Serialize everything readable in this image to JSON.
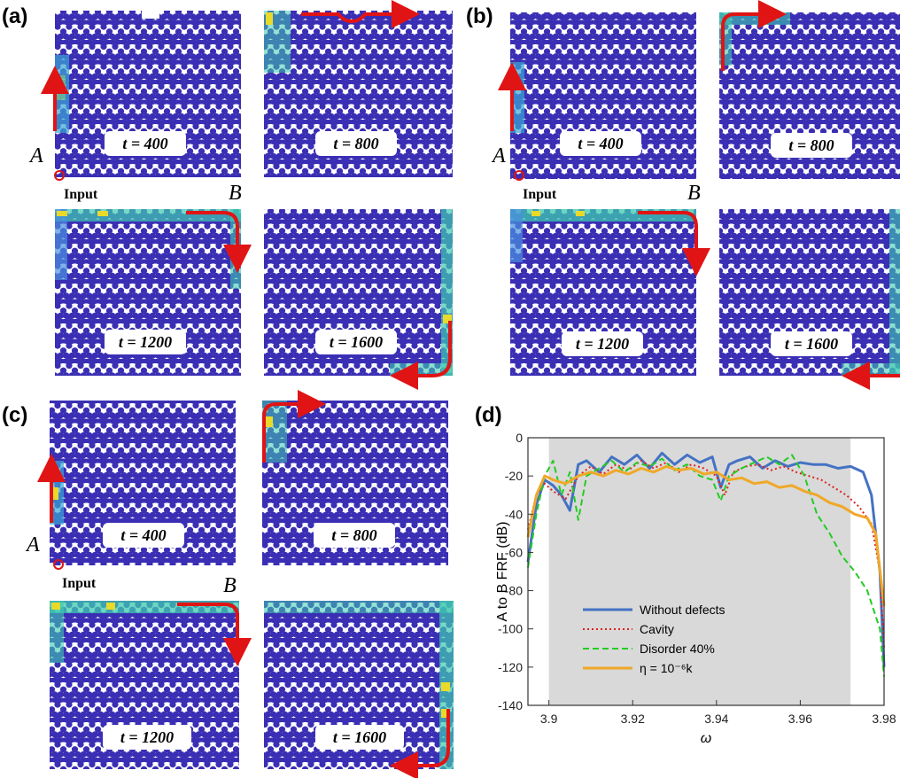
{
  "labels": {
    "a": "(a)",
    "b": "(b)",
    "c": "(c)",
    "d": "(d)"
  },
  "points": {
    "A": "A",
    "B": "B"
  },
  "input_label": "Input",
  "times": [
    "t = 400",
    "t = 800",
    "t = 1200",
    "t = 1600"
  ],
  "colors": {
    "lattice": "#3a2fb4",
    "edge_mid": "#4a90e0",
    "edge_hi": "#3ec9b0",
    "edge_peak": "#e9d92a",
    "arrow": "#e01414",
    "band": "#d9d9d9"
  },
  "chart_data": {
    "type": "line",
    "xlabel": "ω",
    "ylabel": "A to B FRF (dB)",
    "xlim": [
      3.895,
      3.98
    ],
    "ylim": [
      -140,
      0
    ],
    "xticks": [
      "3.9",
      "3.92",
      "3.94",
      "3.96",
      "3.98"
    ],
    "yticks": [
      "0",
      "-20",
      "-40",
      "-60",
      "-80",
      "-100",
      "-120",
      "-140"
    ],
    "band": [
      3.9,
      3.972
    ],
    "legend_position": "lower-left",
    "series": [
      {
        "name": "Without defects",
        "color": "#4472c4",
        "style": "solid",
        "x": [
          3.895,
          3.897,
          3.899,
          3.901,
          3.903,
          3.905,
          3.907,
          3.909,
          3.912,
          3.915,
          3.918,
          3.921,
          3.924,
          3.927,
          3.93,
          3.933,
          3.936,
          3.939,
          3.941,
          3.943,
          3.945,
          3.948,
          3.951,
          3.954,
          3.957,
          3.96,
          3.963,
          3.966,
          3.969,
          3.972,
          3.975,
          3.977,
          3.979,
          3.98
        ],
        "y": [
          -65,
          -35,
          -22,
          -25,
          -30,
          -38,
          -14,
          -12,
          -18,
          -10,
          -14,
          -9,
          -16,
          -8,
          -14,
          -9,
          -13,
          -10,
          -26,
          -14,
          -12,
          -10,
          -16,
          -12,
          -15,
          -13,
          -14,
          -14,
          -16,
          -15,
          -18,
          -30,
          -70,
          -120
        ]
      },
      {
        "name": "Cavity",
        "color": "#e02020",
        "style": "dotted",
        "x": [
          3.895,
          3.897,
          3.899,
          3.901,
          3.904,
          3.907,
          3.91,
          3.913,
          3.916,
          3.919,
          3.922,
          3.925,
          3.928,
          3.931,
          3.934,
          3.937,
          3.94,
          3.942,
          3.944,
          3.947,
          3.95,
          3.953,
          3.956,
          3.959,
          3.962,
          3.965,
          3.968,
          3.971,
          3.974,
          3.977,
          3.979,
          3.98
        ],
        "y": [
          -48,
          -30,
          -24,
          -28,
          -32,
          -20,
          -15,
          -19,
          -14,
          -17,
          -12,
          -16,
          -13,
          -18,
          -14,
          -16,
          -20,
          -30,
          -18,
          -15,
          -14,
          -17,
          -15,
          -18,
          -20,
          -22,
          -26,
          -30,
          -36,
          -45,
          -70,
          -110
        ]
      },
      {
        "name": "Disorder 40%",
        "color": "#22cc22",
        "style": "dashed",
        "x": [
          3.895,
          3.897,
          3.899,
          3.901,
          3.903,
          3.905,
          3.907,
          3.909,
          3.912,
          3.915,
          3.918,
          3.921,
          3.924,
          3.927,
          3.93,
          3.933,
          3.936,
          3.939,
          3.941,
          3.943,
          3.946,
          3.949,
          3.952,
          3.955,
          3.958,
          3.961,
          3.964,
          3.967,
          3.97,
          3.973,
          3.976,
          3.979,
          3.98
        ],
        "y": [
          -68,
          -40,
          -20,
          -12,
          -30,
          -18,
          -43,
          -20,
          -16,
          -12,
          -18,
          -13,
          -15,
          -11,
          -17,
          -14,
          -20,
          -22,
          -33,
          -20,
          -16,
          -13,
          -10,
          -14,
          -9,
          -20,
          -40,
          -50,
          -62,
          -70,
          -80,
          -100,
          -125
        ]
      },
      {
        "name": "η = 10⁻⁶k",
        "color": "#f0a828",
        "style": "solid",
        "x": [
          3.895,
          3.897,
          3.899,
          3.901,
          3.904,
          3.907,
          3.91,
          3.913,
          3.916,
          3.919,
          3.922,
          3.925,
          3.928,
          3.931,
          3.934,
          3.937,
          3.94,
          3.943,
          3.946,
          3.949,
          3.952,
          3.955,
          3.958,
          3.961,
          3.964,
          3.967,
          3.97,
          3.973,
          3.976,
          3.978,
          3.98
        ],
        "y": [
          -52,
          -30,
          -20,
          -22,
          -24,
          -20,
          -18,
          -20,
          -17,
          -19,
          -16,
          -18,
          -15,
          -17,
          -16,
          -19,
          -18,
          -22,
          -21,
          -24,
          -23,
          -26,
          -25,
          -28,
          -30,
          -34,
          -36,
          -40,
          -42,
          -50,
          -88
        ]
      }
    ]
  }
}
